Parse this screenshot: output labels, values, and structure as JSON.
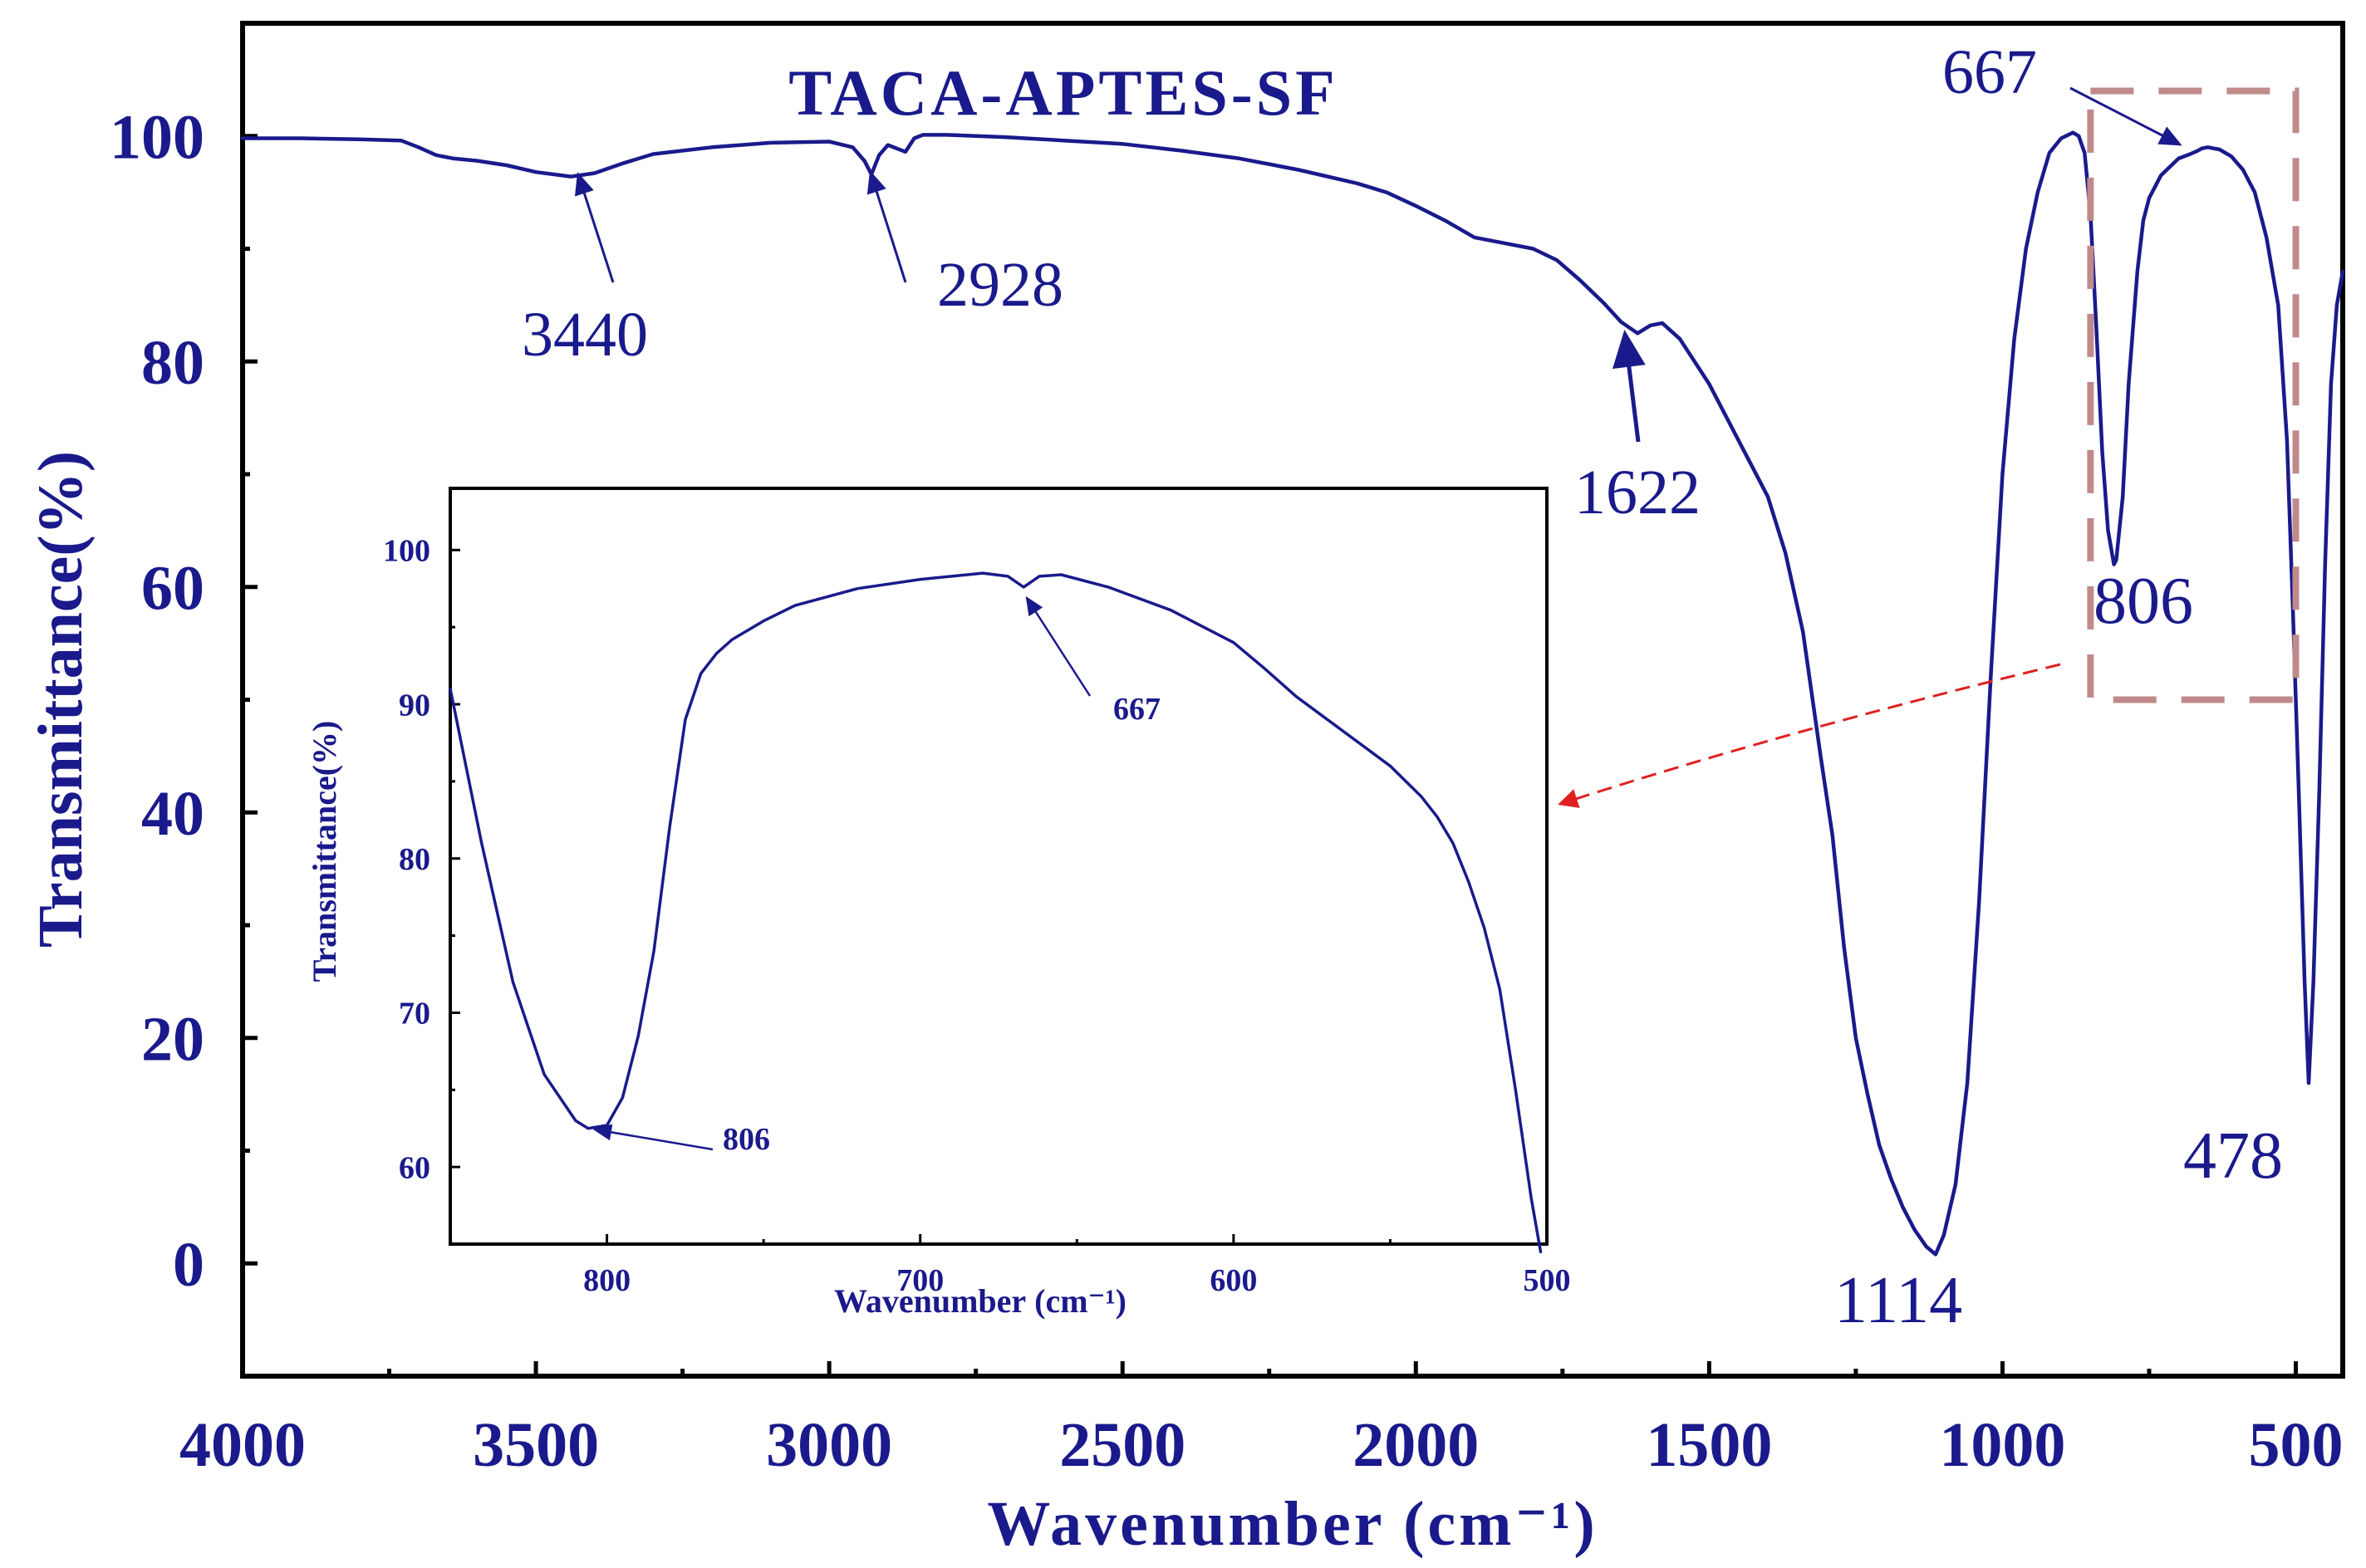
{
  "colors": {
    "series": "#1a1a8c",
    "text": "#1a1a8c",
    "axis": "#000000",
    "highlight_box": "#c08a8a",
    "connector": "#e02020"
  },
  "chart_data": [
    {
      "id": "main",
      "type": "line",
      "title": "TACA-APTES-SF",
      "xlabel": "Wavenumber (cm⁻¹)",
      "ylabel": "Transmittance(%)",
      "x_reversed": true,
      "xlim": [
        4000,
        420
      ],
      "ylim": [
        -10,
        110
      ],
      "xticks": [
        4000,
        3500,
        3000,
        2500,
        2000,
        1500,
        1000,
        500
      ],
      "xtick_labels": [
        "4000",
        "3500",
        "3000",
        "2500",
        "2000",
        "1500",
        "1000",
        "500"
      ],
      "yticks": [
        0,
        20,
        40,
        60,
        80,
        100
      ],
      "ytick_labels": [
        "0",
        "20",
        "40",
        "60",
        "80",
        "100"
      ],
      "series": [
        {
          "name": "TACA-APTES-SF",
          "x": [
            4000,
            3900,
            3800,
            3730,
            3700,
            3670,
            3640,
            3600,
            3550,
            3500,
            3440,
            3400,
            3350,
            3300,
            3200,
            3100,
            3000,
            2960,
            2940,
            2928,
            2915,
            2900,
            2870,
            2855,
            2840,
            2800,
            2700,
            2600,
            2500,
            2400,
            2300,
            2200,
            2100,
            2050,
            2000,
            1950,
            1900,
            1850,
            1800,
            1760,
            1720,
            1680,
            1650,
            1622,
            1600,
            1580,
            1550,
            1500,
            1450,
            1400,
            1370,
            1340,
            1310,
            1290,
            1270,
            1250,
            1230,
            1210,
            1190,
            1170,
            1150,
            1130,
            1114,
            1100,
            1080,
            1060,
            1040,
            1020,
            1000,
            980,
            960,
            940,
            920,
            900,
            880,
            870,
            860,
            850,
            840,
            830,
            820,
            810,
            806,
            795,
            785,
            770,
            760,
            750,
            730,
            700,
            680,
            667,
            660,
            650,
            630,
            610,
            590,
            570,
            550,
            530,
            515,
            505,
            495,
            485,
            478,
            470,
            460,
            450,
            440,
            430,
            420
          ],
          "y": [
            99.8,
            99.8,
            99.7,
            99.6,
            99.0,
            98.3,
            98.0,
            97.8,
            97.4,
            96.8,
            96.4,
            96.7,
            97.6,
            98.4,
            99.0,
            99.4,
            99.5,
            99.0,
            97.8,
            96.6,
            98.3,
            99.2,
            98.6,
            99.8,
            100.1,
            100.1,
            99.9,
            99.6,
            99.3,
            98.7,
            98.0,
            97.0,
            95.8,
            95.0,
            93.8,
            92.5,
            91.0,
            90.5,
            90.0,
            89.0,
            87.2,
            85.2,
            83.5,
            82.5,
            83.2,
            83.4,
            82.0,
            78.0,
            73.0,
            68.0,
            63.0,
            56.0,
            45.0,
            38.0,
            28.0,
            20.0,
            15.0,
            10.5,
            7.5,
            5.0,
            3.0,
            1.5,
            0.8,
            2.5,
            7.0,
            16.0,
            32.0,
            52.0,
            70.0,
            82.0,
            90.0,
            95.0,
            98.5,
            99.8,
            100.3,
            100.0,
            98.5,
            93.0,
            83.0,
            72.0,
            65.0,
            62.0,
            62.4,
            68.0,
            78.0,
            88.0,
            92.5,
            94.5,
            96.5,
            98.0,
            98.4,
            98.7,
            98.9,
            99.0,
            98.8,
            98.2,
            97.0,
            95.0,
            91.0,
            85.0,
            73.0,
            58.0,
            42.0,
            25.0,
            16.0,
            25.0,
            42.0,
            62.0,
            78.0,
            85.0,
            88.0
          ]
        }
      ],
      "annotations": [
        {
          "text": "3440",
          "x": 3440,
          "y": 96.4
        },
        {
          "text": "2928",
          "x": 2928,
          "y": 96.6
        },
        {
          "text": "1622",
          "x": 1622,
          "y": 82.5
        },
        {
          "text": "1114",
          "x": 1114,
          "y": 0.8
        },
        {
          "text": "806",
          "x": 806,
          "y": 62.4
        },
        {
          "text": "667",
          "x": 667,
          "y": 98.9
        },
        {
          "text": "478",
          "x": 478,
          "y": 16.0
        }
      ],
      "highlight_region": {
        "x_from": 850,
        "x_to": 500,
        "y_from": 50,
        "y_to": 104
      }
    },
    {
      "id": "inset",
      "type": "line",
      "title": "",
      "xlabel": "Wavenumber (cm⁻¹)",
      "ylabel": "Transmittance(%)",
      "x_reversed": true,
      "xlim": [
        850,
        500
      ],
      "ylim": [
        55,
        104
      ],
      "xticks": [
        800,
        700,
        600,
        500
      ],
      "xtick_labels": [
        "800",
        "700",
        "600",
        "500"
      ],
      "yticks": [
        60,
        70,
        80,
        90,
        100
      ],
      "ytick_labels": [
        "60",
        "70",
        "80",
        "90",
        "100"
      ],
      "series": [
        {
          "name": "TACA-APTES-SF (zoom)",
          "x": [
            850,
            840,
            830,
            820,
            810,
            806,
            800,
            795,
            790,
            785,
            780,
            775,
            770,
            765,
            760,
            750,
            740,
            720,
            700,
            690,
            680,
            672,
            667,
            662,
            655,
            640,
            620,
            600,
            590,
            580,
            560,
            550,
            540,
            535,
            530,
            525,
            520,
            515,
            510,
            505,
            502
          ],
          "y": [
            91.0,
            81.0,
            72.0,
            66.0,
            63.0,
            62.5,
            62.7,
            64.5,
            68.5,
            74.0,
            82.0,
            89.0,
            92.0,
            93.3,
            94.2,
            95.4,
            96.4,
            97.5,
            98.1,
            98.3,
            98.5,
            98.3,
            97.6,
            98.3,
            98.4,
            97.6,
            96.1,
            94.0,
            92.3,
            90.5,
            87.5,
            86.0,
            84.0,
            82.7,
            81.0,
            78.5,
            75.5,
            71.5,
            65.0,
            58.0,
            54.5
          ]
        }
      ],
      "annotations": [
        {
          "text": "806",
          "x": 806,
          "y": 62.5
        },
        {
          "text": "667",
          "x": 667,
          "y": 97.6
        }
      ]
    }
  ]
}
